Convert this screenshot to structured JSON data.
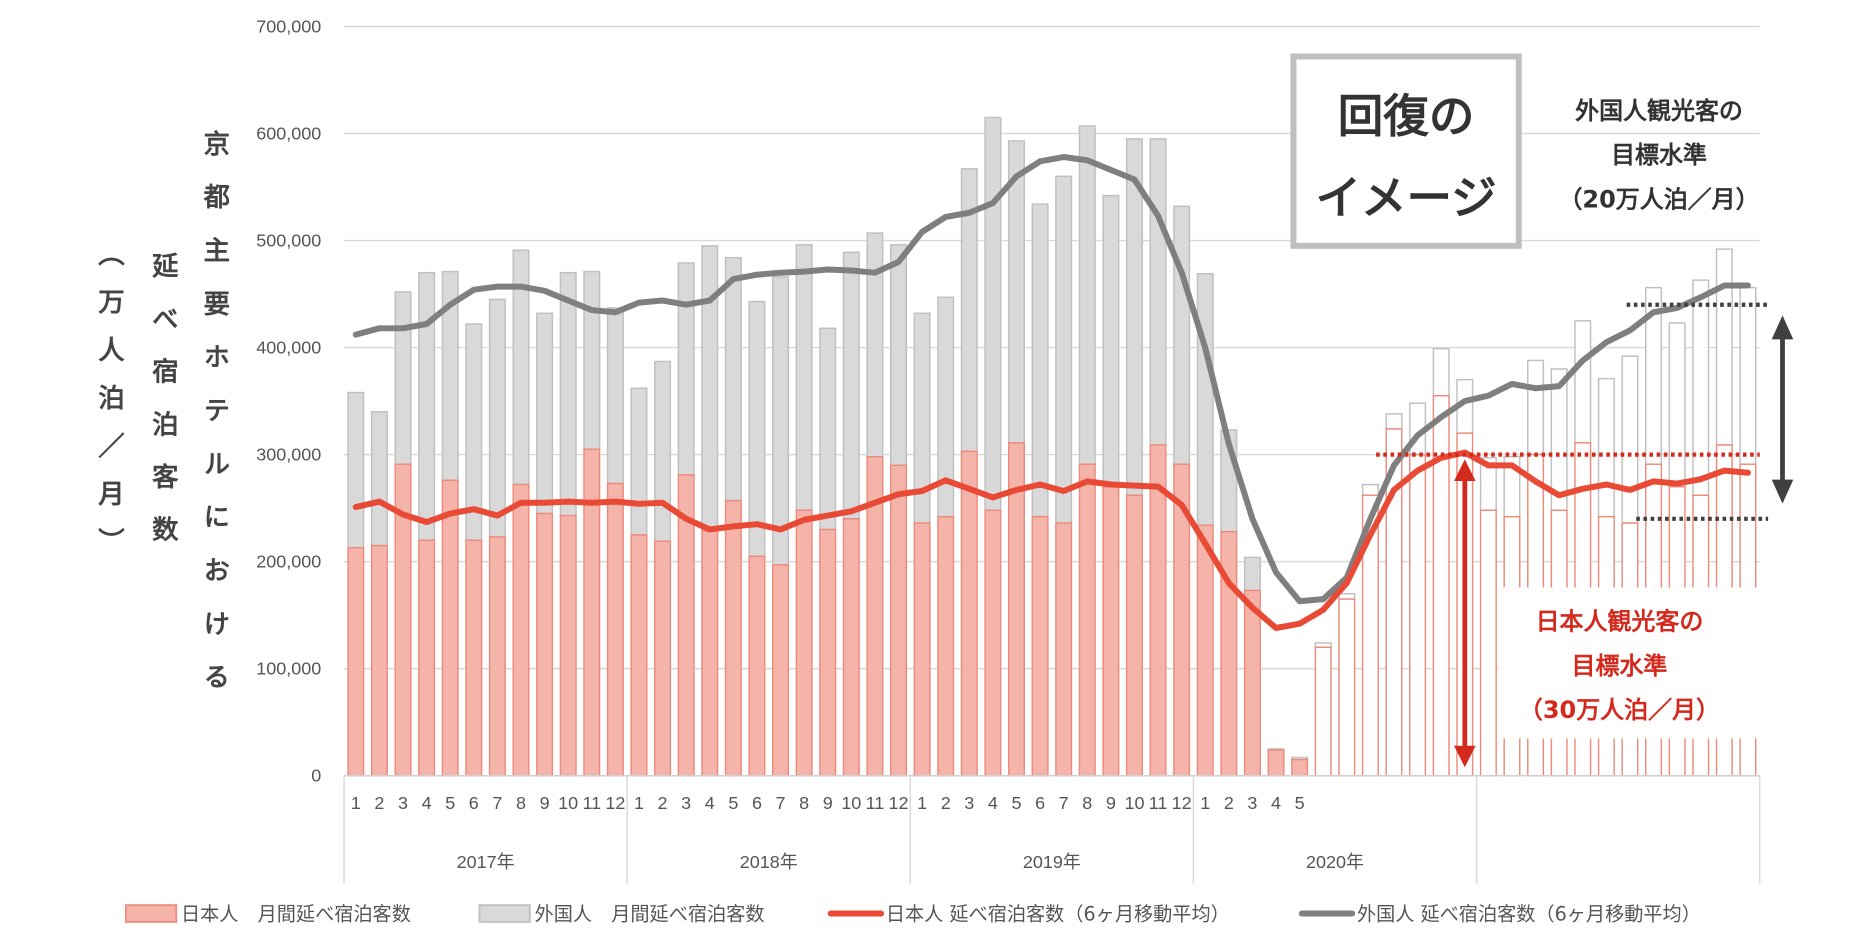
{
  "chart_data": {
    "type": "bar",
    "stacked": true,
    "ylabel_columns": [
      "京都主要ホテルにおける",
      "延べ宿泊客数",
      "（万人泊／月）"
    ],
    "ylim": [
      0,
      700000
    ],
    "yticks": [
      "0",
      "100,000",
      "200,000",
      "300,000",
      "400,000",
      "500,000",
      "600,000",
      "700,000"
    ],
    "grid": true,
    "legend_placement": "bottom",
    "years": [
      "2017年",
      "2018年",
      "2019年",
      "2020年",
      ""
    ],
    "month_labels": [
      "1",
      "2",
      "3",
      "4",
      "5",
      "6",
      "7",
      "8",
      "9",
      "10",
      "11",
      "12",
      "1",
      "2",
      "3",
      "4",
      "5",
      "6",
      "7",
      "8",
      "9",
      "10",
      "11",
      "12",
      "1",
      "2",
      "3",
      "4",
      "5",
      "6",
      "7",
      "8",
      "9",
      "10",
      "11",
      "12",
      "1",
      "2",
      "3",
      "4",
      "5",
      "",
      "",
      "",
      "",
      "",
      "",
      "",
      "",
      "",
      "",
      "",
      "",
      "",
      "",
      "",
      "",
      "",
      "",
      ""
    ],
    "actual_months": 41,
    "series": [
      {
        "name": "日本人　月間延べ宿泊客数",
        "kind": "bar",
        "color": "#f4b4aa",
        "edge": "#ee8a7c",
        "values": [
          213000,
          215000,
          291000,
          220000,
          276000,
          220000,
          223000,
          272000,
          245000,
          243000,
          305000,
          273000,
          225000,
          219000,
          281000,
          229000,
          257000,
          205000,
          197000,
          248000,
          230000,
          240000,
          298000,
          290000,
          236000,
          242000,
          303000,
          248000,
          311000,
          242000,
          236000,
          291000,
          270000,
          262000,
          309000,
          291000,
          234000,
          228000,
          173000,
          24000,
          15000,
          120000,
          165000,
          262000,
          324000,
          300000,
          355000,
          320000,
          248000,
          242000,
          300000,
          248000,
          311000,
          242000,
          236000,
          291000,
          270000,
          262000,
          309000,
          291000
        ]
      },
      {
        "name": "外国人　月間延べ宿泊客数",
        "kind": "bar",
        "color": "#d9d9d9",
        "edge": "#bfbfbf",
        "values": [
          145000,
          125000,
          161000,
          250000,
          195000,
          202000,
          222000,
          219000,
          187000,
          227000,
          166000,
          164000,
          137000,
          168000,
          198000,
          266000,
          227000,
          238000,
          269000,
          248000,
          188000,
          249000,
          209000,
          206000,
          196000,
          205000,
          264000,
          367000,
          282000,
          292000,
          324000,
          316000,
          272000,
          333000,
          286000,
          241000,
          235000,
          95000,
          31000,
          1000,
          2000,
          4000,
          5000,
          10000,
          14000,
          48000,
          44000,
          50000,
          49000,
          56000,
          88000,
          132000,
          114000,
          129000,
          156000,
          165000,
          153000,
          201000,
          183000,
          165000
        ]
      },
      {
        "name": "日本人 延べ宿泊客数（6ヶ月移動平均）",
        "kind": "line",
        "color": "#e84a35",
        "values": [
          251000,
          256000,
          244000,
          237000,
          245000,
          249000,
          243000,
          255000,
          255000,
          256000,
          255000,
          256000,
          254000,
          255000,
          240000,
          230000,
          233000,
          235000,
          230000,
          239000,
          243000,
          247000,
          255000,
          263000,
          266000,
          276000,
          268000,
          260000,
          267000,
          272000,
          266000,
          275000,
          272000,
          271000,
          270000,
          253000,
          217000,
          180000,
          157000,
          138000,
          142000,
          155000,
          180000,
          225000,
          267000,
          285000,
          297000,
          302000,
          290000,
          290000,
          275000,
          262000,
          268000,
          272000,
          267000,
          275000,
          273000,
          277000,
          285000,
          283000
        ]
      },
      {
        "name": "外国人 延べ宿泊客数（6ヶ月移動平均）",
        "kind": "line",
        "color": "#7f7f7f",
        "values": [
          412000,
          418000,
          418000,
          422000,
          440000,
          454000,
          457000,
          457000,
          453000,
          444000,
          435000,
          433000,
          442000,
          444000,
          440000,
          444000,
          464000,
          468000,
          470000,
          471000,
          473000,
          472000,
          470000,
          480000,
          508000,
          522000,
          526000,
          535000,
          560000,
          574000,
          578000,
          575000,
          566000,
          557000,
          523000,
          470000,
          400000,
          310000,
          240000,
          190000,
          163000,
          165000,
          185000,
          240000,
          290000,
          318000,
          335000,
          350000,
          355000,
          366000,
          362000,
          364000,
          388000,
          405000,
          416000,
          433000,
          437000,
          447000,
          458000,
          458000
        ]
      }
    ],
    "annotations": {
      "box_lines": [
        "回復の",
        "イメージ"
      ],
      "foreign_target_lines": [
        "外国人観光客の",
        "目標水準",
        "（20万人泊／月）"
      ],
      "japanese_target_lines": [
        "日本人観光客の",
        "目標水準",
        "（30万人泊／月）"
      ],
      "japanese_target_level": 300000,
      "foreign_target_upper": 440000,
      "foreign_target_lower": 240000,
      "japanese_color": "#d42a1e",
      "arrow_dark_color": "#404040"
    }
  }
}
